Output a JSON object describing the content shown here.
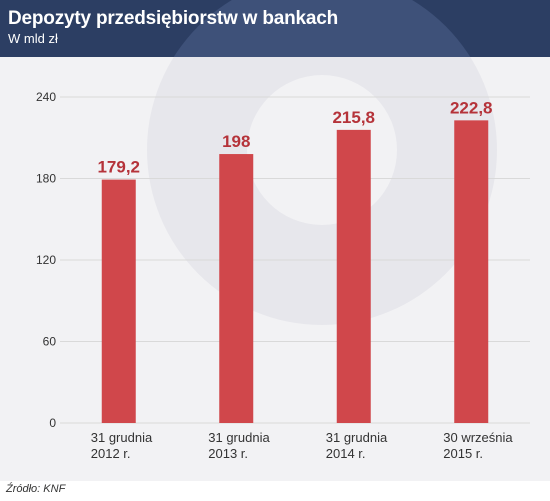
{
  "title": "Depozyty przedsiębiorstw w bankach",
  "subtitle": "W mld zł",
  "source": "Źródło: KNF",
  "colors": {
    "header_bg": "#2c3e63",
    "plot_bg": "#f2f2f4",
    "bar": "#d0474b",
    "value_label": "#b5333a",
    "grid": "#d9d9d9",
    "text": "#333333"
  },
  "chart_data": {
    "type": "bar",
    "title": "Depozyty przedsiębiorstw w bankach",
    "subtitle": "W mld zł",
    "categories": [
      [
        "31 grudnia",
        "2012 r."
      ],
      [
        "31 grudnia",
        "2013 r."
      ],
      [
        "31 grudnia",
        "2014 r."
      ],
      [
        "30 września",
        "2015 r."
      ]
    ],
    "values": [
      179.2,
      198,
      215.8,
      222.8
    ],
    "value_labels": [
      "179,2",
      "198",
      "215,8",
      "222,8"
    ],
    "yticks": [
      0,
      60,
      120,
      180,
      240
    ],
    "ylim": [
      0,
      240
    ],
    "grid": true,
    "legend": "none"
  }
}
